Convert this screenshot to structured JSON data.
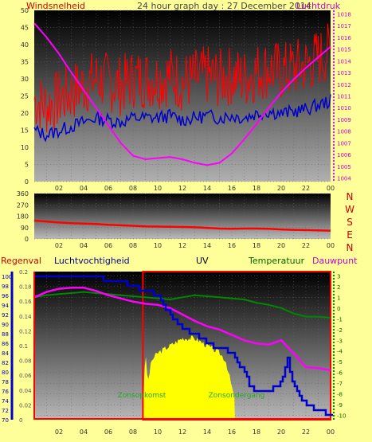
{
  "header": {
    "left_label": "Windsnelheid",
    "title": "24 hour graph day : 27 December 2014",
    "right_label": "Luchtdruk"
  },
  "compass": [
    "N",
    "W",
    "S",
    "E",
    "N"
  ],
  "bottom_header": {
    "regenval": "Regenval",
    "luchtvochtigheid": "Luchtvochtigheid",
    "uv": "UV",
    "temperatuur": "Temperatuur",
    "dauwpunt": "Dauwpunt"
  },
  "sun_labels": {
    "sunrise": "Zonsopkomst",
    "sunset": "Zonsondergang"
  },
  "colors": {
    "wind_gust": "#ff0000",
    "wind_avg": "#0000cc",
    "pressure": "#ff00ff",
    "direction": "#ff0000",
    "humidity": "#0000cc",
    "uv": "#ffff00",
    "temperature": "#008800",
    "dewpoint": "#ff00ff",
    "rain": "#ff0000",
    "sun_label": "#22aa22",
    "background": "#ffff99"
  },
  "chart_data": [
    {
      "type": "line",
      "x_ticks": [
        "02",
        "04",
        "06",
        "08",
        "10",
        "12",
        "14",
        "16",
        "18",
        "20",
        "22",
        "00"
      ],
      "y_left_ticks": [
        0,
        5,
        10,
        15,
        20,
        25,
        30,
        35,
        40,
        45,
        50
      ],
      "y_left_range": [
        0,
        50
      ],
      "y_right_ticks": [
        1004,
        1005,
        1006,
        1007,
        1008,
        1009,
        1010,
        1011,
        1012,
        1013,
        1014,
        1015,
        1016,
        1017,
        1018
      ],
      "y_right_range": [
        1003.7,
        1018.3
      ],
      "series": [
        {
          "name": "Windsnelheid",
          "axis": "left",
          "x": [
            0,
            1,
            2,
            3,
            4,
            5,
            6,
            7,
            8,
            9,
            10,
            11,
            12,
            13,
            14,
            15,
            16,
            17,
            18,
            19,
            20,
            21,
            22,
            23,
            24
          ],
          "values": [
            24,
            22,
            24,
            26,
            28,
            30,
            29,
            28,
            30,
            30,
            30,
            31,
            29,
            30,
            31,
            30,
            31,
            30,
            32,
            33,
            32,
            33,
            34,
            36,
            38
          ]
        },
        {
          "name": "Luchtdruk",
          "axis": "right",
          "x": [
            0,
            1,
            2,
            3,
            4,
            5,
            6,
            7,
            8,
            9,
            10,
            11,
            12,
            13,
            14,
            15,
            16,
            17,
            18,
            19,
            20,
            21,
            22,
            23,
            24
          ],
          "values": [
            1017.2,
            1016.0,
            1014.6,
            1013.0,
            1011.5,
            1010.0,
            1008.5,
            1007.0,
            1005.9,
            1005.6,
            1005.7,
            1005.8,
            1005.6,
            1005.3,
            1005.1,
            1005.3,
            1006.1,
            1007.3,
            1008.6,
            1010.0,
            1011.3,
            1012.4,
            1013.4,
            1014.3,
            1015.2
          ]
        }
      ]
    },
    {
      "type": "line",
      "x_ticks": [
        "02",
        "04",
        "06",
        "08",
        "10",
        "12",
        "14",
        "16",
        "18",
        "20",
        "22",
        "00"
      ],
      "y_ticks": [
        0,
        90,
        180,
        270,
        360
      ],
      "y_range": [
        0,
        360
      ],
      "series": [
        {
          "name": "",
          "x": [
            0,
            1,
            2,
            3,
            4,
            5,
            6,
            7,
            8,
            9,
            10,
            11,
            12,
            13,
            14,
            15,
            16,
            17,
            18,
            19,
            20,
            21,
            22,
            23,
            24
          ],
          "values": [
            145,
            138,
            130,
            125,
            122,
            118,
            112,
            108,
            104,
            100,
            98,
            96,
            95,
            92,
            88,
            82,
            80,
            82,
            82,
            80,
            75,
            72,
            70,
            68,
            66
          ]
        }
      ]
    },
    {
      "type": "line",
      "x_ticks": [
        "02",
        "04",
        "06",
        "08",
        "10",
        "12",
        "14",
        "16",
        "18",
        "20",
        "22",
        "00"
      ],
      "y_humidity_ticks": [
        70,
        72,
        74,
        76,
        78,
        80,
        82,
        84,
        86,
        88,
        90,
        92,
        94,
        96,
        98,
        100
      ],
      "y_humidity_range": [
        70,
        101
      ],
      "y_uv_ticks": [
        0,
        0.02,
        0.04,
        0.06,
        0.08,
        0.1,
        0.12,
        0.14,
        0.16,
        0.18,
        0.2
      ],
      "y_uv_range": [
        0,
        0.2
      ],
      "y_temp_ticks": [
        3,
        2,
        1,
        0,
        -1,
        -2,
        -3,
        -4,
        -5,
        -6,
        -7,
        -8,
        -9,
        -10
      ],
      "y_temp_range": [
        -10.4,
        3.4
      ],
      "series": [
        {
          "name": "Luchtvochtigheid",
          "x": [
            0,
            1,
            2,
            3,
            4,
            5,
            6,
            7,
            8,
            9,
            10,
            11,
            12,
            13,
            14,
            15,
            16,
            17,
            17.5,
            18,
            19,
            20,
            20.5,
            21,
            22,
            23,
            24
          ],
          "values": [
            100,
            100,
            100,
            100,
            100,
            100,
            99,
            99,
            98,
            97,
            96,
            92,
            89,
            88,
            86,
            85,
            84,
            80,
            77,
            76,
            76,
            78,
            83,
            77,
            73,
            72,
            71
          ]
        },
        {
          "name": "UV",
          "x": [
            0,
            8.8,
            8.9,
            9.0,
            9.2,
            9.5,
            10,
            11,
            12,
            13,
            14,
            15,
            15.5,
            16.2,
            16.3,
            24
          ],
          "values": [
            0,
            0,
            0.06,
            0.09,
            0.05,
            0.08,
            0.09,
            0.1,
            0.11,
            0.11,
            0.1,
            0.09,
            0.08,
            0.03,
            0,
            0
          ]
        },
        {
          "name": "Temperatuur",
          "x": [
            0,
            1,
            2,
            3,
            4,
            5,
            6,
            7,
            8,
            9,
            10,
            11,
            12,
            13,
            14,
            15,
            16,
            17,
            18,
            19,
            20,
            21,
            22,
            23,
            24
          ],
          "values": [
            1.0,
            1.2,
            1.3,
            1.4,
            1.5,
            1.4,
            1.3,
            1.2,
            1.1,
            1.0,
            0.9,
            0.8,
            1.0,
            1.2,
            1.1,
            1.0,
            0.9,
            0.8,
            0.5,
            0.3,
            0.0,
            -0.5,
            -0.8,
            -0.8,
            -0.9
          ]
        },
        {
          "name": "Dauwpunt",
          "x": [
            0,
            1,
            2,
            3,
            4,
            5,
            6,
            7,
            8,
            9,
            10,
            11,
            12,
            13,
            14,
            15,
            16,
            17,
            18,
            19,
            20,
            21,
            22,
            23,
            24
          ],
          "values": [
            1.0,
            1.5,
            1.8,
            1.9,
            1.9,
            1.6,
            1.2,
            0.9,
            0.6,
            0.4,
            0.3,
            0.0,
            -0.6,
            -1.2,
            -1.7,
            -2.0,
            -2.5,
            -3.0,
            -3.3,
            -3.4,
            -3.0,
            -4.2,
            -5.5,
            -5.6,
            -5.8
          ]
        },
        {
          "name": "Regenval",
          "x": [
            0,
            24
          ],
          "values": [
            0,
            0
          ]
        }
      ]
    }
  ]
}
